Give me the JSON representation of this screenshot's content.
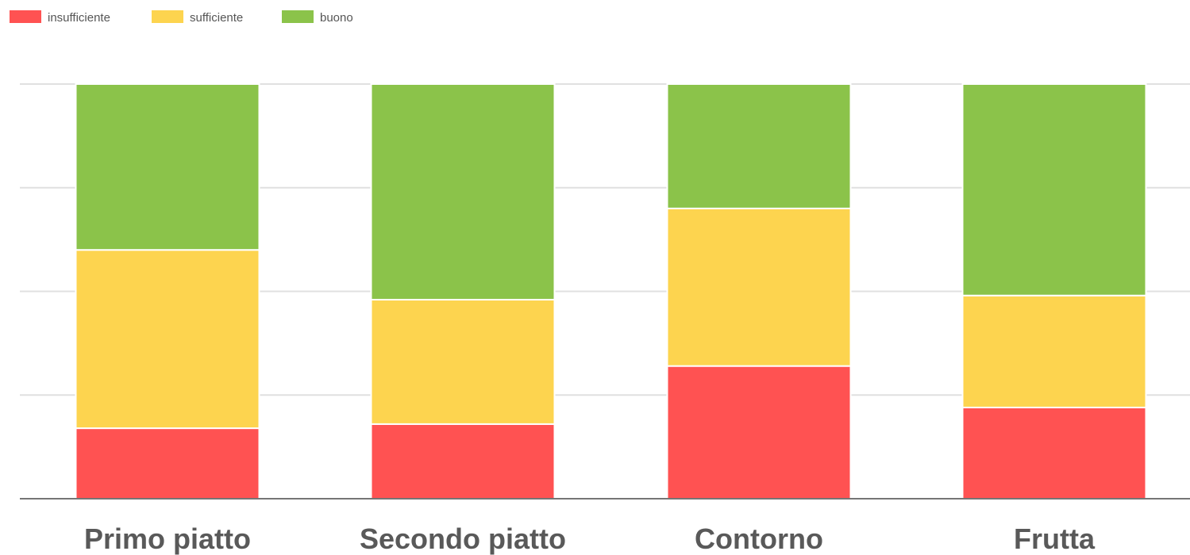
{
  "chart_data": {
    "type": "bar",
    "stacked": true,
    "percent": true,
    "categories": [
      "Primo piatto",
      "Secondo piatto",
      "Contorno",
      "Frutta"
    ],
    "series": [
      {
        "name": "insufficiente",
        "color": "#ff5252",
        "values": [
          17,
          18,
          32,
          22
        ]
      },
      {
        "name": "sufficiente",
        "color": "#fdd44f",
        "values": [
          43,
          30,
          38,
          27
        ]
      },
      {
        "name": "buono",
        "color": "#8bc34a",
        "values": [
          40,
          52,
          30,
          51
        ]
      }
    ],
    "ylim": [
      0,
      100
    ],
    "grid": true,
    "legend_position": "top-left",
    "title": "",
    "xlabel": "",
    "ylabel": ""
  }
}
